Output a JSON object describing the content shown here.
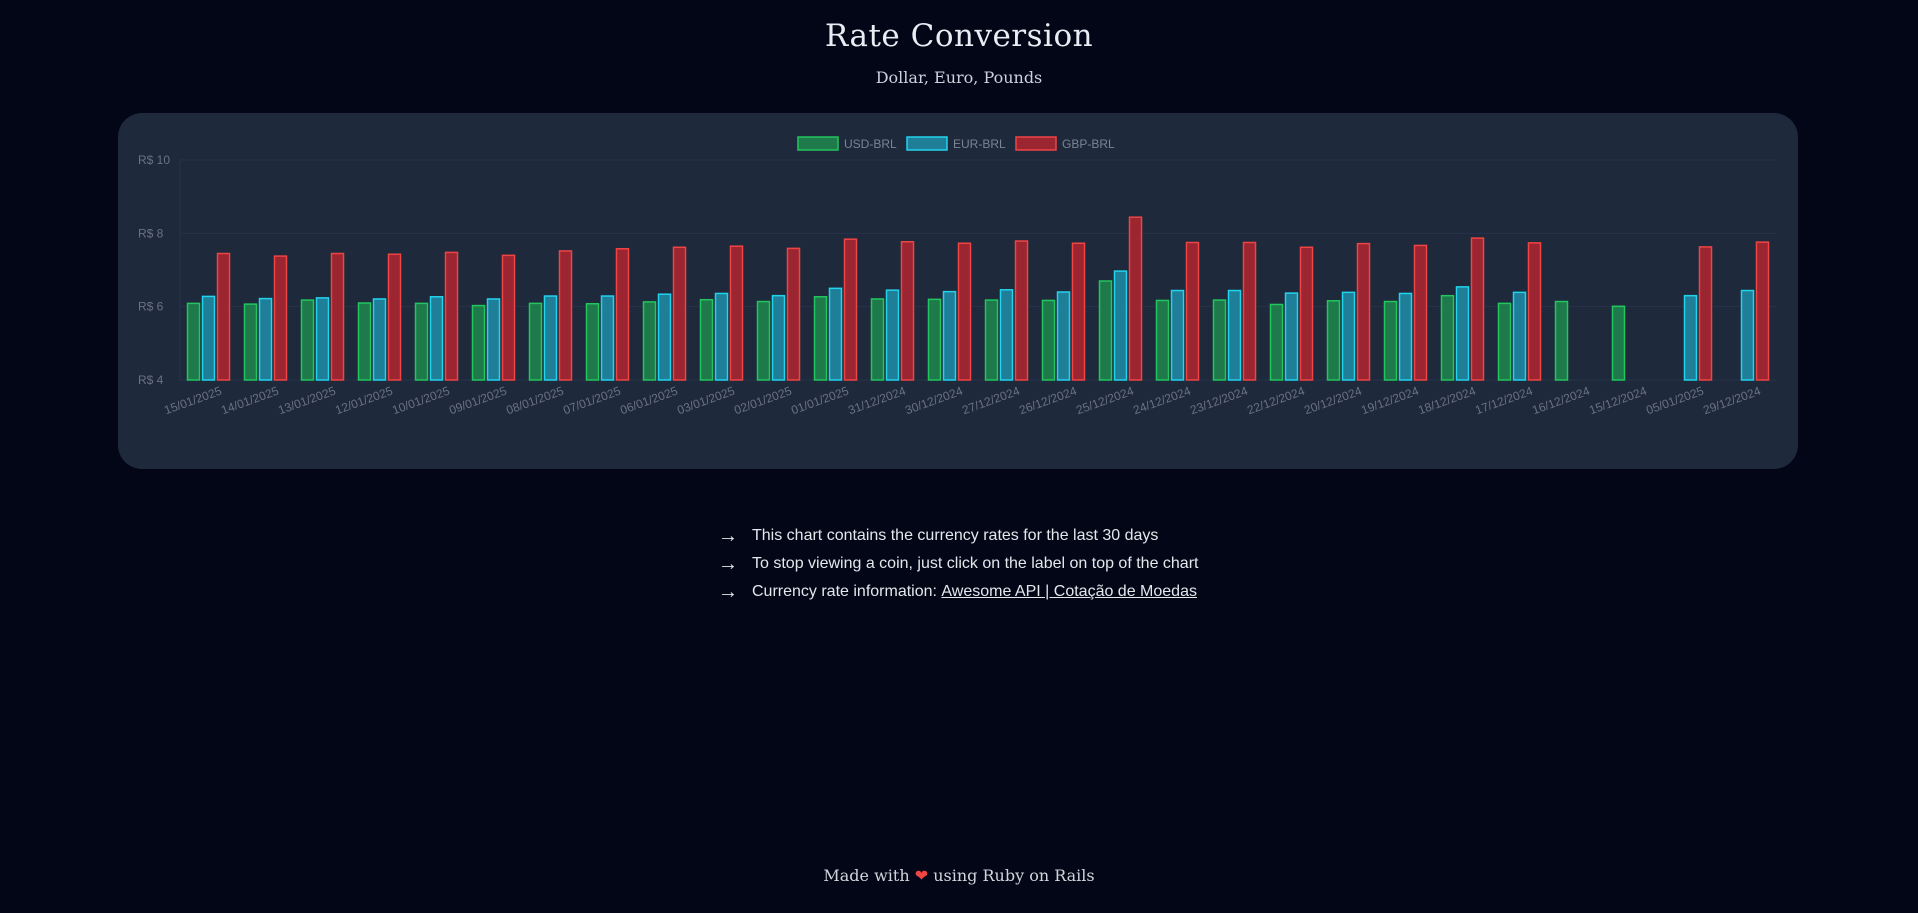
{
  "header": {
    "title": "Rate Conversion",
    "subtitle": "Dollar, Euro, Pounds"
  },
  "chart_data": {
    "type": "bar",
    "title": "",
    "xlabel": "",
    "ylabel": "",
    "ylim": [
      4,
      10
    ],
    "y_ticks": [
      4,
      6,
      8,
      10
    ],
    "y_tick_labels": [
      "R$ 4",
      "R$ 6",
      "R$ 8",
      "R$ 10"
    ],
    "grid": true,
    "legend_position": "top-center",
    "categories": [
      "15/01/2025",
      "14/01/2025",
      "13/01/2025",
      "12/01/2025",
      "10/01/2025",
      "09/01/2025",
      "08/01/2025",
      "07/01/2025",
      "06/01/2025",
      "03/01/2025",
      "02/01/2025",
      "01/01/2025",
      "31/12/2024",
      "30/12/2024",
      "27/12/2024",
      "26/12/2024",
      "25/12/2024",
      "24/12/2024",
      "23/12/2024",
      "22/12/2024",
      "20/12/2024",
      "19/12/2024",
      "18/12/2024",
      "17/12/2024",
      "16/12/2024",
      "15/12/2024",
      "05/01/2025",
      "29/12/2024"
    ],
    "series": [
      {
        "name": "USD-BRL",
        "color": "#22c55e",
        "fill": "#1e7a4a",
        "values": [
          6.09,
          6.07,
          6.18,
          6.1,
          6.09,
          6.03,
          6.09,
          6.08,
          6.13,
          6.19,
          6.14,
          6.27,
          6.21,
          6.2,
          6.18,
          6.17,
          6.7,
          6.17,
          6.18,
          6.06,
          6.16,
          6.14,
          6.3,
          6.09,
          6.14,
          6.01,
          null,
          null
        ]
      },
      {
        "name": "EUR-BRL",
        "color": "#22d3ee",
        "fill": "#1f7f99",
        "values": [
          6.28,
          6.22,
          6.24,
          6.21,
          6.27,
          6.21,
          6.29,
          6.29,
          6.34,
          6.36,
          6.3,
          6.5,
          6.45,
          6.41,
          6.46,
          6.4,
          6.97,
          6.44,
          6.44,
          6.37,
          6.39,
          6.36,
          6.54,
          6.39,
          null,
          null,
          6.3,
          6.44
        ]
      },
      {
        "name": "GBP-BRL",
        "color": "#ef4444",
        "fill": "#9b2530",
        "values": [
          7.45,
          7.38,
          7.45,
          7.43,
          7.48,
          7.4,
          7.52,
          7.58,
          7.62,
          7.65,
          7.59,
          7.84,
          7.77,
          7.73,
          7.79,
          7.73,
          8.44,
          7.75,
          7.75,
          7.62,
          7.72,
          7.67,
          7.87,
          7.74,
          null,
          null,
          7.63,
          7.76
        ]
      }
    ]
  },
  "notes": {
    "items": [
      "This chart contains the currency rates for the last 30 days",
      "To stop viewing a coin, just click on the label on top of the chart",
      "Currency rate information: "
    ],
    "arrow": "→",
    "link_text": "Awesome API | Cotação de Moedas"
  },
  "footer": {
    "before": "Made with ",
    "heart": "❤",
    "after": " using Ruby on Rails"
  },
  "colors": {
    "background": "#020617",
    "card": "#1e293b"
  }
}
